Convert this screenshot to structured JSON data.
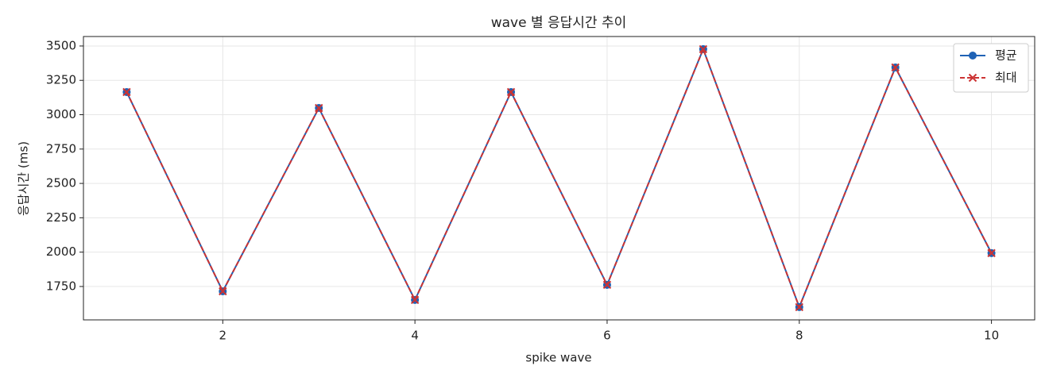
{
  "chart_data": {
    "type": "line",
    "title": "wave 별 응답시간 추이",
    "xlabel": "spike wave",
    "ylabel": "응답시간 (ms)",
    "x": [
      1,
      2,
      3,
      4,
      5,
      6,
      7,
      8,
      9,
      10
    ],
    "series": [
      {
        "name": "평균",
        "color": "#1f62b5",
        "marker": "o",
        "linestyle": "solid",
        "values": [
          3165,
          1715,
          3049,
          1652,
          3165,
          1762,
          3477,
          1600,
          3344,
          1993
        ]
      },
      {
        "name": "최대",
        "color": "#cc3333",
        "marker": "x",
        "linestyle": "dashed",
        "values": [
          3165,
          1715,
          3049,
          1652,
          3165,
          1762,
          3477,
          1600,
          3344,
          1993
        ]
      }
    ],
    "xlim": [
      0.55,
      10.45
    ],
    "xticks": [
      2,
      4,
      6,
      8,
      10
    ],
    "ylim": [
      1507,
      3569
    ],
    "yticks": [
      1750,
      2000,
      2250,
      2500,
      2750,
      3000,
      3250,
      3500
    ],
    "grid": true,
    "legend": "upper right"
  }
}
